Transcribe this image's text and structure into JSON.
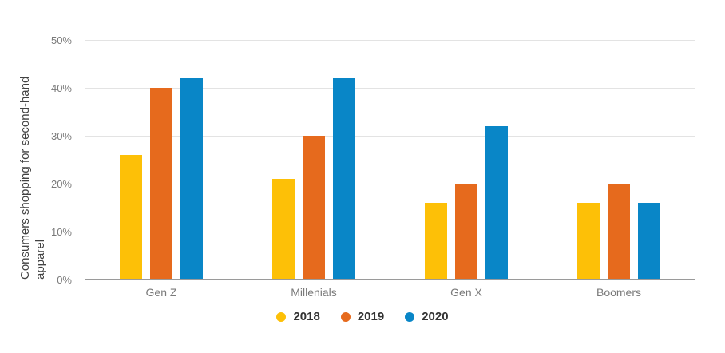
{
  "chart_data": {
    "type": "bar",
    "ylabel": "Consumers shopping for second-hand apparel",
    "ylabel_lines": [
      "Consumers shopping for second-hand",
      "apparel"
    ],
    "xlabel": "",
    "categories": [
      "Gen Z",
      "Millenials",
      "Gen X",
      "Boomers"
    ],
    "series": [
      {
        "name": "2018",
        "color": "#FDC007",
        "values": [
          26,
          21,
          16,
          16
        ]
      },
      {
        "name": "2019",
        "color": "#E66A1D",
        "values": [
          40,
          30,
          20,
          20
        ]
      },
      {
        "name": "2020",
        "color": "#0986C7",
        "values": [
          42,
          42,
          32,
          16
        ]
      }
    ],
    "ylim": [
      0,
      50
    ],
    "y_tick_values": [
      0,
      10,
      20,
      30,
      40,
      50
    ],
    "y_tick_labels": [
      "0%",
      "10%",
      "20%",
      "30%",
      "40%",
      "50%"
    ],
    "grid": true,
    "legend_position": "bottom",
    "colors": {
      "background": "#ffffff",
      "gridline": "#e3e3e3",
      "axis_line": "#9a9a9a",
      "tick_text": "#7a7a7a",
      "category_text": "#7a7a7a",
      "axis_title_text": "#424242",
      "legend_text": "#333333"
    }
  }
}
